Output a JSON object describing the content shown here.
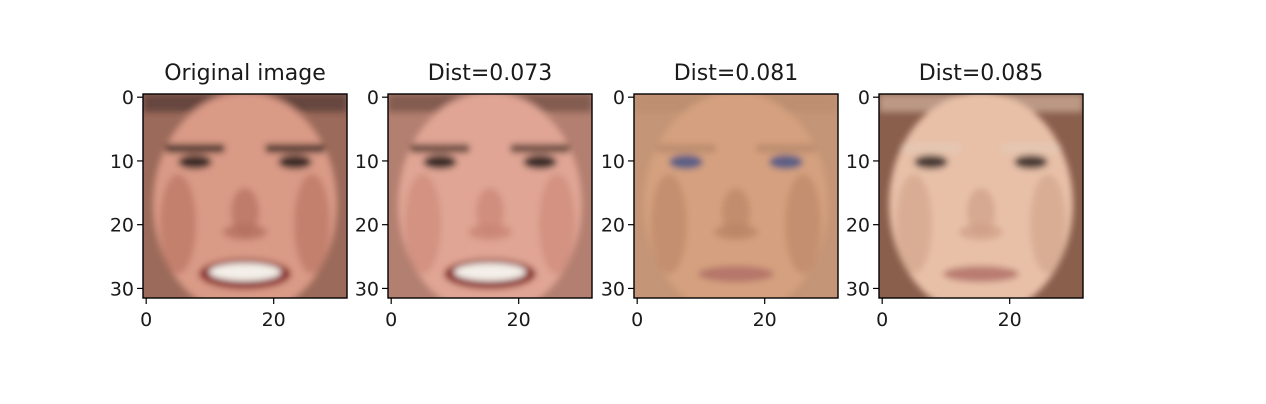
{
  "chart_data": {
    "type": "image_grid",
    "panels": [
      {
        "title": "Original image",
        "face": {
          "skin": "#d99a86",
          "skin_dark": "#b46f5e",
          "bg": "#9c6a5a",
          "hair": "#3a2a24",
          "eyes": "#3b2a26",
          "mouth": "smile"
        }
      },
      {
        "title": "Dist=0.073",
        "face": {
          "skin": "#e0a594",
          "skin_dark": "#c98576",
          "bg": "#b37f70",
          "hair": "#5b3f34",
          "eyes": "#3a2c26",
          "mouth": "smile"
        }
      },
      {
        "title": "Dist=0.081",
        "face": {
          "skin": "#d4a07f",
          "skin_dark": "#b98466",
          "bg": "#c49576",
          "hair": "#b88a6c",
          "eyes": "#5a5f85",
          "mouth": "neutral"
        }
      },
      {
        "title": "Dist=0.085",
        "face": {
          "skin": "#e8c0a8",
          "skin_dark": "#cfa087",
          "bg": "#8a5f4c",
          "hair": "#e3c8b4",
          "eyes": "#4a3b34",
          "mouth": "neutral"
        }
      }
    ],
    "y_ticks": [
      "0",
      "10",
      "20",
      "30"
    ],
    "y_tick_values": [
      0,
      10,
      20,
      30
    ],
    "x_ticks": [
      "0",
      "20"
    ],
    "x_tick_values": [
      0,
      20
    ],
    "pixel_range": [
      -0.5,
      31.5
    ]
  }
}
